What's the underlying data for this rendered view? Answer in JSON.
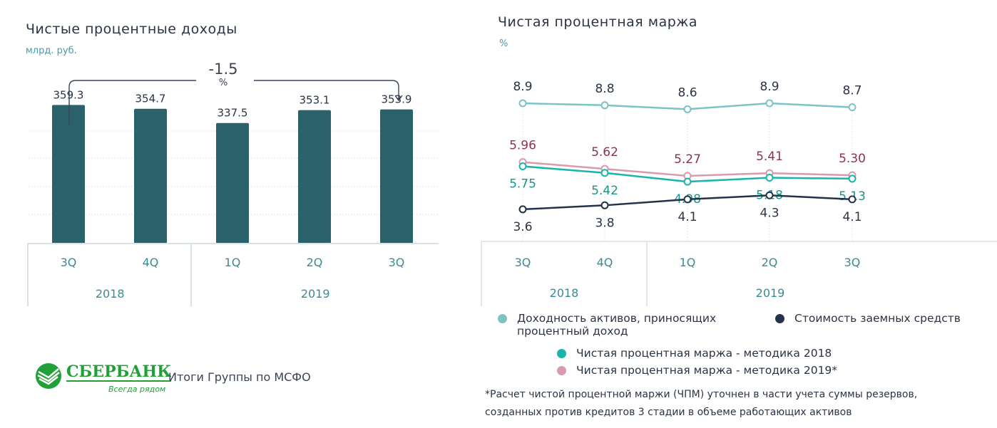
{
  "chart_data": [
    {
      "type": "bar",
      "title": "Чистые процентные доходы",
      "unit": "млрд. руб.",
      "categories": [
        "3Q",
        "4Q",
        "1Q",
        "2Q",
        "3Q"
      ],
      "groups": [
        {
          "label": "2018",
          "span": 2
        },
        {
          "label": "2019",
          "span": 3
        }
      ],
      "values": [
        359.3,
        354.7,
        337.5,
        353.1,
        353.9
      ],
      "labels": [
        "359.3",
        "354.7",
        "337.5",
        "353.1",
        "353.9"
      ],
      "ylim": [
        192,
        400
      ],
      "grid": true,
      "bar_color": "#2a616a",
      "annotation": {
        "value": "-1.5",
        "unit": "%",
        "from": "3Q 2018",
        "to": "3Q 2019"
      }
    },
    {
      "type": "line",
      "title": "Чистая процентная маржа",
      "unit": "%",
      "categories": [
        "3Q",
        "4Q",
        "1Q",
        "2Q",
        "3Q"
      ],
      "groups": [
        {
          "label": "2018",
          "span": 2
        },
        {
          "label": "2019",
          "span": 3
        }
      ],
      "ylim": [
        3.0,
        9.5
      ],
      "series": [
        {
          "name": "Доходность активов, приносящих процентный доход",
          "values": [
            8.9,
            8.8,
            8.6,
            8.9,
            8.7
          ],
          "labels": [
            "8.9",
            "8.8",
            "8.6",
            "8.9",
            "8.7"
          ],
          "color": "#7cc3c6",
          "label_color": "#2b3445",
          "label_pos": "above"
        },
        {
          "name": "Чистая процентная маржа - методика 2019*",
          "values": [
            5.96,
            5.62,
            5.27,
            5.41,
            5.3
          ],
          "labels": [
            "5.96",
            "5.62",
            "5.27",
            "5.41",
            "5.30"
          ],
          "color": "#d99ab0",
          "label_color": "#8c3350",
          "label_pos": "above"
        },
        {
          "name": "Чистая процентная маржа - методика 2018",
          "values": [
            5.75,
            5.42,
            4.98,
            5.18,
            5.13
          ],
          "labels": [
            "5.75",
            "5.42",
            "4.98",
            "5.18",
            "5.13"
          ],
          "color": "#19b5ad",
          "label_color": "#16968f",
          "label_pos": "below"
        },
        {
          "name": "Стоимость заемных средств",
          "values": [
            3.6,
            3.8,
            4.1,
            4.3,
            4.1
          ],
          "labels": [
            "3.6",
            "3.8",
            "4.1",
            "4.3",
            "4.1"
          ],
          "color": "#24324a",
          "label_color": "#2b3445",
          "label_pos": "below"
        }
      ]
    }
  ],
  "legend": {
    "assets": "Доходность активов, приносящих процентный доход",
    "assets_line1": "Доходность активов, приносящих",
    "assets_line2": "процентный доход",
    "cost": "Стоимость заемных средств",
    "m2018": "Чистая процентная маржа - методика 2018",
    "m2019": "Чистая процентная маржа - методика 2019*"
  },
  "footnote_line1": "*Расчет чистой процентной маржи (ЧПМ) уточнен в части учета суммы резервов,",
  "footnote_line2": "созданных против кредитов 3 стадии в объеме работающих активов",
  "logo": {
    "name": "СБЕРБАНК",
    "slogan": "Всегда рядом",
    "color": "#21a038"
  },
  "footer_text": "Итоги Группы по МСФО"
}
